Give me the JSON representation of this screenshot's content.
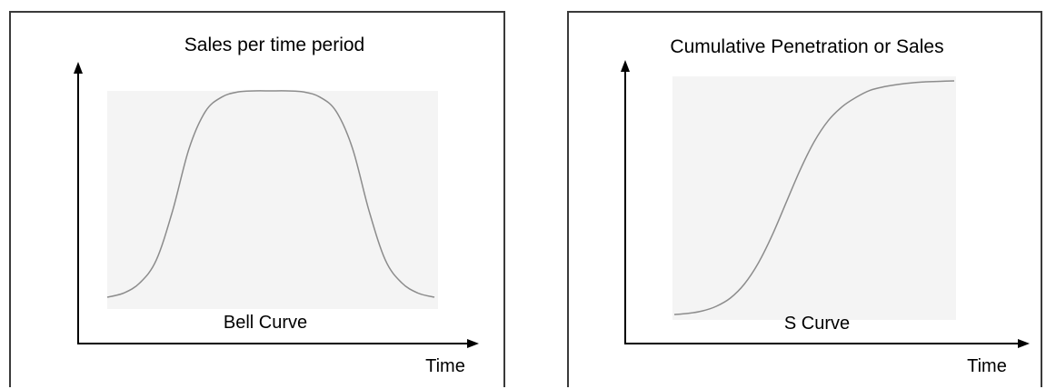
{
  "chart_data": [
    {
      "type": "line",
      "title": "Sales per time period",
      "xlabel": "Time",
      "ylabel": "",
      "annotation": "Bell Curve",
      "series": [
        {
          "x": [
            0,
            0.05,
            0.1,
            0.15,
            0.2,
            0.25,
            0.3,
            0.35,
            0.4,
            0.45,
            0.5,
            0.55,
            0.6,
            0.65,
            0.7,
            0.75,
            0.8,
            0.85,
            0.9,
            0.95,
            1
          ],
          "values": [
            0.0,
            0.02,
            0.07,
            0.18,
            0.42,
            0.72,
            0.9,
            0.97,
            0.995,
            1.0,
            1.0,
            1.0,
            0.995,
            0.97,
            0.9,
            0.72,
            0.42,
            0.18,
            0.07,
            0.02,
            0.0
          ]
        }
      ],
      "stroke": "#8c8c8c",
      "plot_background": "#f4f4f4"
    },
    {
      "type": "line",
      "title": "Cumulative Penetration or Sales",
      "xlabel": "Time",
      "ylabel": "",
      "annotation": "S Curve",
      "series": [
        {
          "x": [
            0,
            0.05,
            0.1,
            0.15,
            0.2,
            0.25,
            0.3,
            0.35,
            0.4,
            0.45,
            0.5,
            0.55,
            0.6,
            0.65,
            0.7,
            0.75,
            0.8,
            0.85,
            0.9,
            0.95,
            1
          ],
          "values": [
            0.0,
            0.005,
            0.015,
            0.035,
            0.07,
            0.13,
            0.22,
            0.34,
            0.48,
            0.62,
            0.74,
            0.83,
            0.89,
            0.93,
            0.96,
            0.975,
            0.985,
            0.992,
            0.996,
            0.998,
            1.0
          ]
        }
      ],
      "stroke": "#8c8c8c",
      "plot_background": "#f4f4f4"
    }
  ]
}
